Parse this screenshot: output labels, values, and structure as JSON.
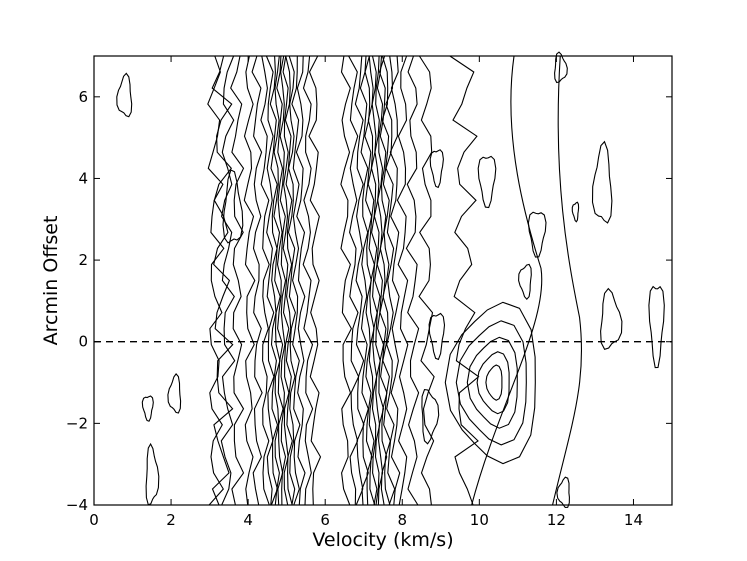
{
  "chart_data": {
    "type": "contour",
    "title": "",
    "xlabel": "Velocity (km/s)",
    "ylabel": "Arcmin Offset",
    "xlim": [
      0,
      15
    ],
    "ylim": [
      -4,
      7
    ],
    "xticks": [
      0,
      2,
      4,
      6,
      8,
      10,
      12,
      14
    ],
    "yticks": [
      -4,
      -2,
      0,
      2,
      4,
      6
    ],
    "xtick_labels": [
      "0",
      "2",
      "4",
      "6",
      "8",
      "10",
      "12",
      "14"
    ],
    "ytick_labels": [
      "−4",
      "−2",
      "0",
      "2",
      "4",
      "6"
    ],
    "grid": false,
    "reference_line": {
      "y": 0,
      "style": "dashed"
    },
    "emission_features": [
      {
        "name": "strong ridge",
        "velocity": 4.9,
        "offset_range": [
          -4,
          7
        ]
      },
      {
        "name": "strong ridge",
        "velocity": 7.3,
        "offset_range": [
          -4,
          7
        ]
      },
      {
        "name": "clump",
        "velocity": 10.4,
        "offset": -1.0
      }
    ]
  }
}
